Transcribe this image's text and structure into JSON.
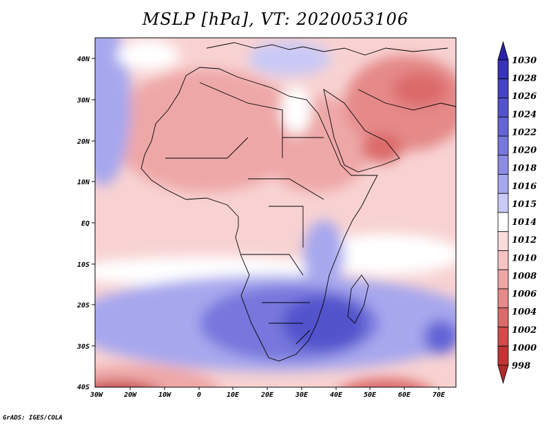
{
  "title": "MSLP [hPa], VT: 2020053106",
  "credit": "GrADS: IGES/COLA",
  "map": {
    "lat_labels": [
      "40N",
      "30N",
      "20N",
      "10N",
      "EQ",
      "10S",
      "20S",
      "30S",
      "40S"
    ],
    "lon_labels": [
      "30W",
      "20W",
      "10W",
      "0",
      "10E",
      "20E",
      "30E",
      "40E",
      "50E",
      "60E",
      "70E"
    ]
  },
  "colorbar": {
    "levels": [
      "1030",
      "1028",
      "1026",
      "1024",
      "1022",
      "1020",
      "1018",
      "1016",
      "1015",
      "1014",
      "1012",
      "1010",
      "1008",
      "1006",
      "1004",
      "1002",
      "1000",
      "998"
    ],
    "colors": [
      "#2b23a8",
      "#3833b8",
      "#4543c4",
      "#5353cc",
      "#6464d6",
      "#7777dd",
      "#8c8ce4",
      "#a7a7ee",
      "#c9c9f6",
      "#ffffff",
      "#fbdcdc",
      "#f6c3c3",
      "#eea7a7",
      "#e58989",
      "#dc6a6a",
      "#d04b4b",
      "#c23535",
      "#b32a2a"
    ]
  }
}
